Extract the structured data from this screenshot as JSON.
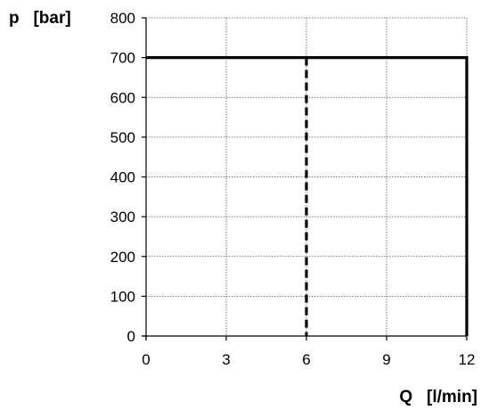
{
  "chart_data": {
    "type": "line",
    "title": "",
    "ylabel": "p   [bar]",
    "xlabel": "Q   [l/min]",
    "xlim": [
      0,
      12
    ],
    "ylim": [
      0,
      800
    ],
    "xticks": [
      0,
      3,
      6,
      9,
      12
    ],
    "yticks": [
      0,
      100,
      200,
      300,
      400,
      500,
      600,
      700,
      800
    ],
    "grid": true,
    "grid_style": "dotted",
    "series": [
      {
        "style": "solid",
        "color": "#000000",
        "x": [
          0,
          12,
          12
        ],
        "y": [
          700,
          700,
          0
        ]
      },
      {
        "style": "dashed",
        "color": "#000000",
        "x": [
          6,
          6
        ],
        "y": [
          700,
          0
        ]
      }
    ]
  }
}
